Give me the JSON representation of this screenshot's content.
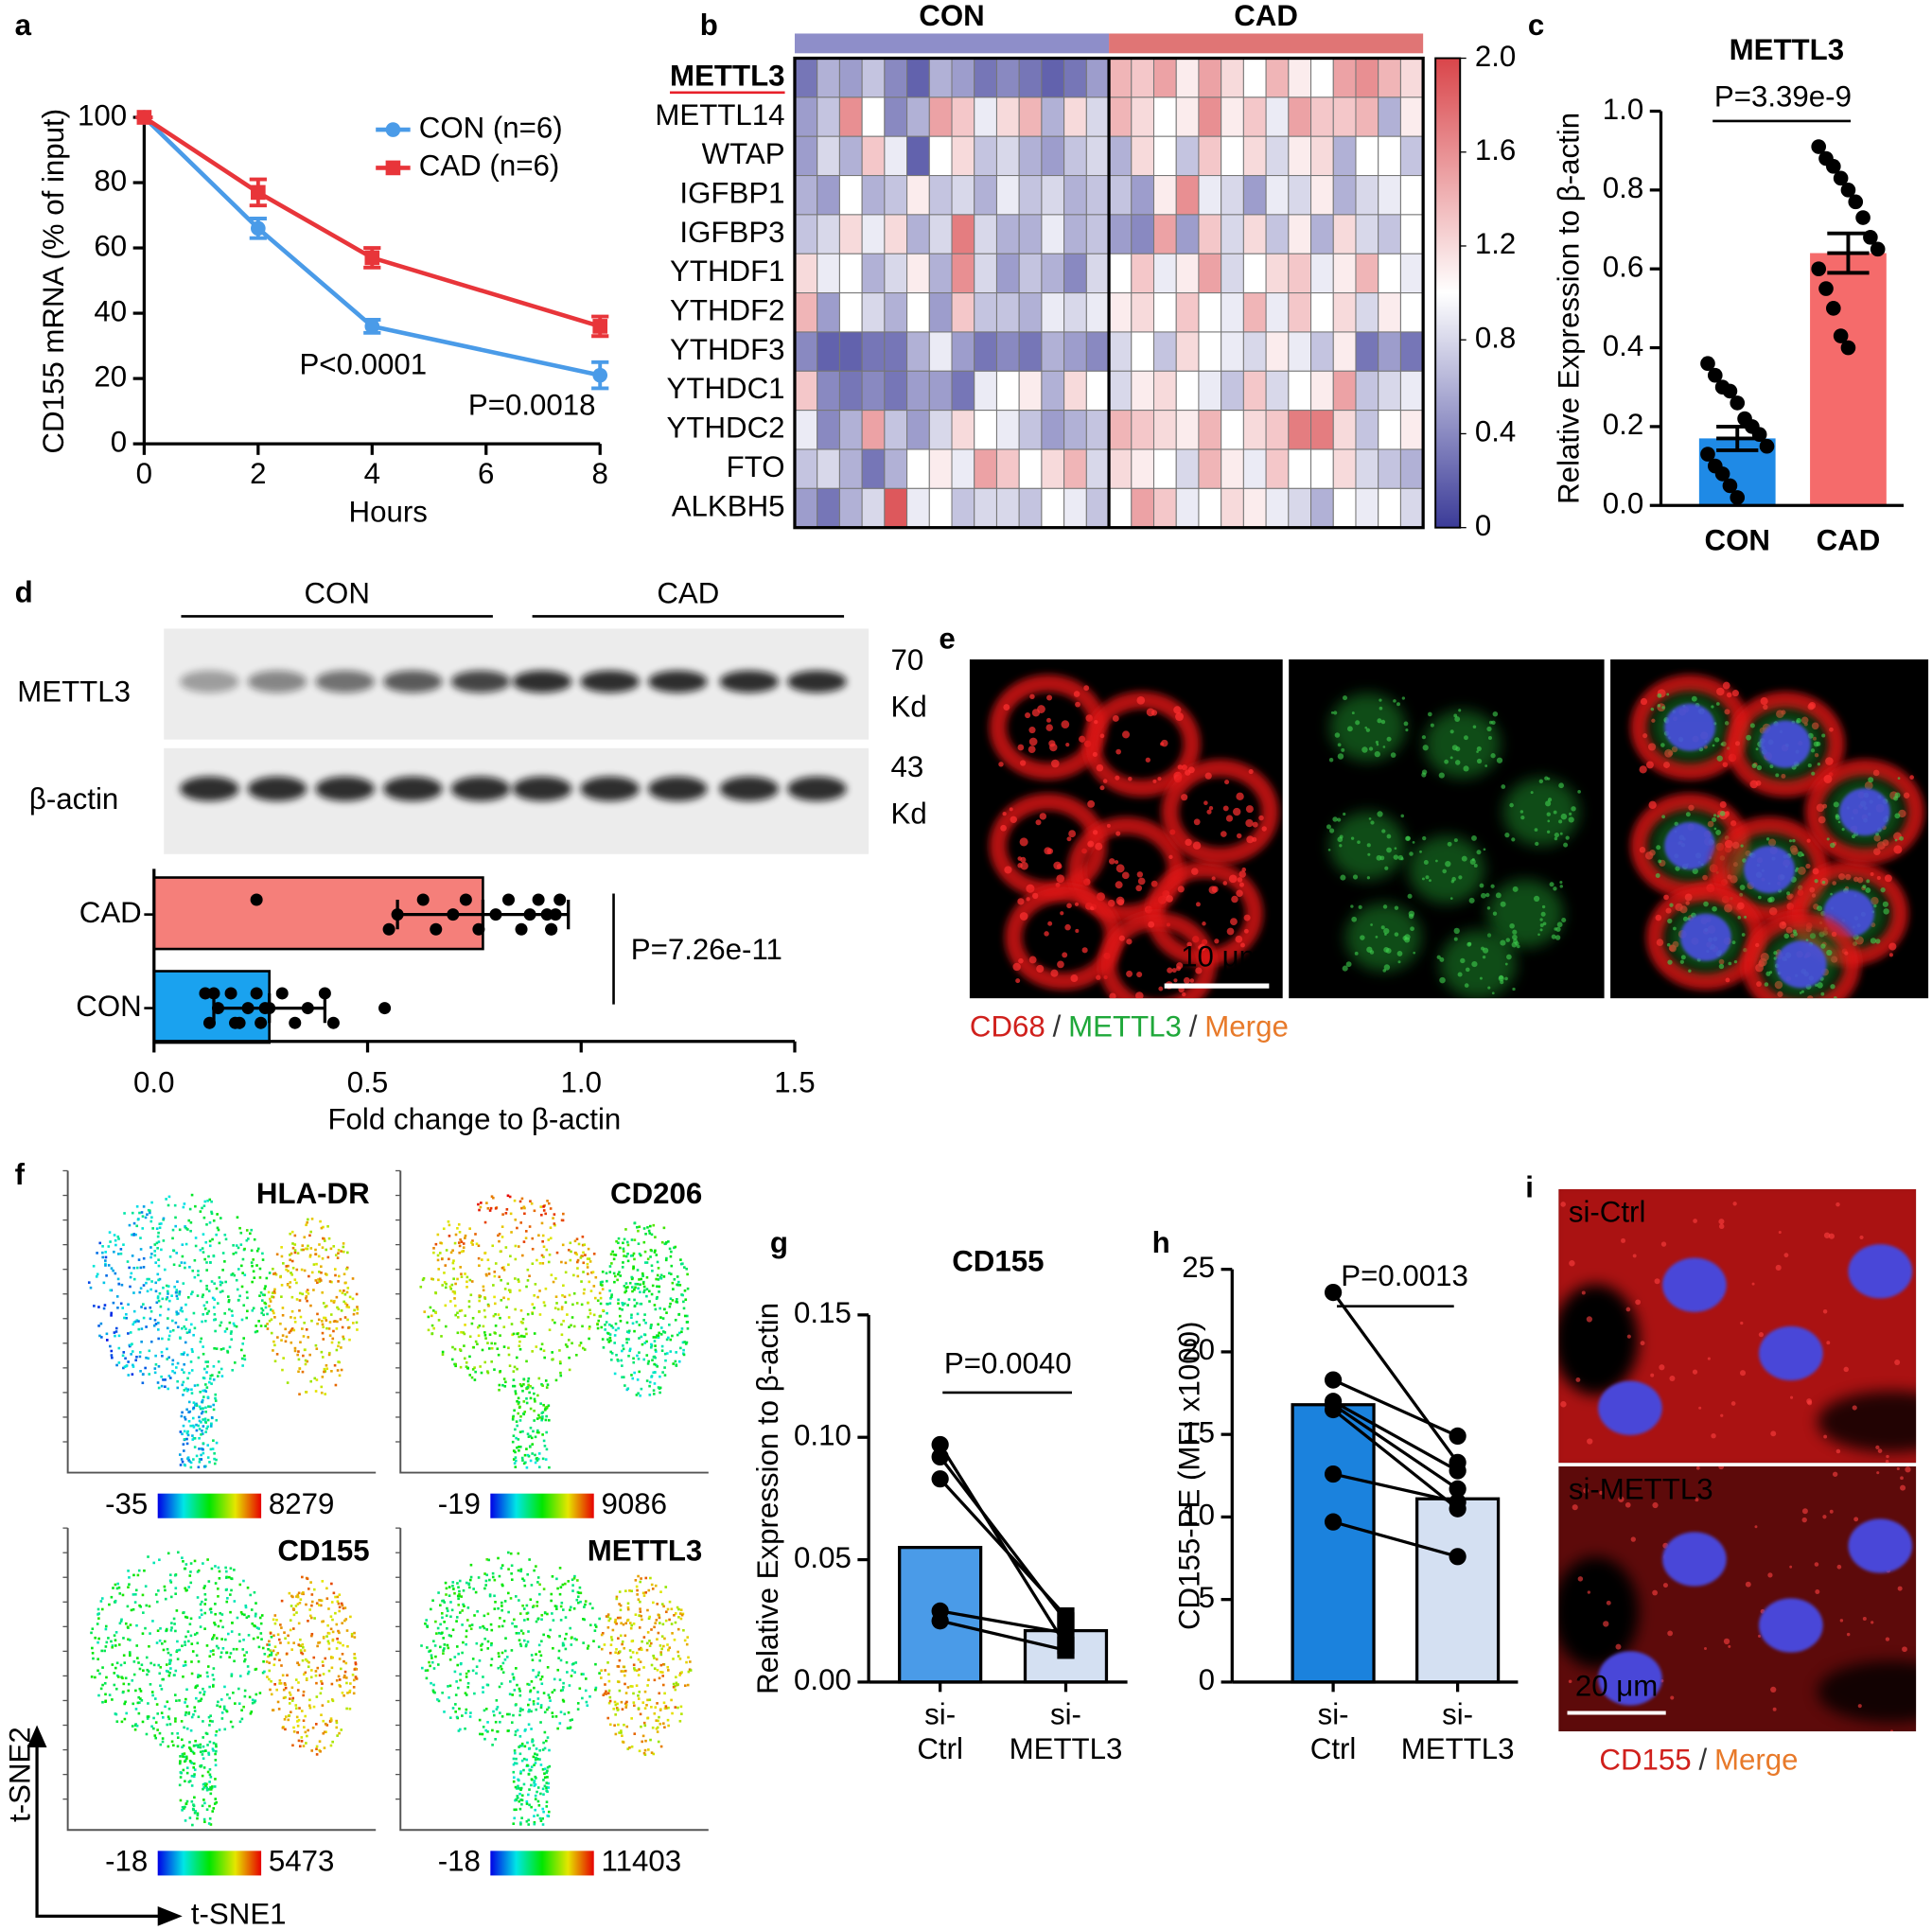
{
  "panel_labels": [
    "a",
    "b",
    "c",
    "d",
    "e",
    "f",
    "g",
    "h",
    "i"
  ],
  "chart_data": [
    {
      "type": "line",
      "ylabel": "CD155 mRNA (% of input)",
      "xlabel": "Hours",
      "x": [
        0,
        2,
        4,
        8
      ],
      "xlim": [
        0,
        8
      ],
      "xticks": [
        0,
        2,
        4,
        6,
        8
      ],
      "ylim": [
        0,
        100
      ],
      "yticks": [
        0,
        20,
        40,
        60,
        80,
        100
      ],
      "series": [
        {
          "name": "CON (n=6)",
          "color": "#4a9be8",
          "values": [
            100,
            66,
            36,
            21
          ],
          "errors": [
            0,
            3,
            2,
            4
          ]
        },
        {
          "name": "CAD (n=6)",
          "color": "#e8353a",
          "values": [
            100,
            77,
            57,
            36
          ],
          "errors": [
            0,
            4,
            3,
            3
          ]
        }
      ],
      "annotations": [
        "P<0.0001",
        "P=0.0018"
      ]
    },
    {
      "type": "heatmap",
      "groups": [
        {
          "name": "CON",
          "color": "#8e8ec9"
        },
        {
          "name": "CAD",
          "color": "#e07575"
        }
      ],
      "rows": [
        "METTL3",
        "METTL14",
        "WTAP",
        "IGFBP1",
        "IGFBP3",
        "YTHDF1",
        "YTHDF2",
        "YTHDF3",
        "YTHDC1",
        "YTHDC2",
        "FTO",
        "ALKBH5"
      ],
      "highlight_row": 0,
      "highlight_color": "#e8202a",
      "values": [
        [
          0.3,
          0.6,
          0.5,
          0.7,
          0.4,
          0.2,
          0.6,
          0.5,
          0.3,
          0.4,
          0.3,
          0.2,
          0.3,
          0.5,
          1.4,
          1.3,
          1.5,
          1.1,
          1.5,
          1.2,
          1.0,
          1.4,
          1.1,
          1.0,
          1.5,
          1.6,
          1.4,
          1.2
        ],
        [
          0.5,
          0.7,
          1.6,
          1.0,
          0.4,
          0.6,
          1.5,
          1.3,
          0.9,
          1.2,
          1.4,
          0.6,
          1.2,
          0.8,
          1.4,
          1.2,
          1.0,
          1.1,
          1.6,
          1.1,
          1.3,
          0.9,
          1.5,
          1.3,
          1.3,
          1.4,
          0.6,
          1.1
        ],
        [
          0.5,
          0.8,
          0.6,
          1.3,
          0.9,
          0.2,
          1.0,
          1.2,
          0.7,
          0.8,
          0.6,
          0.5,
          0.7,
          0.8,
          0.6,
          1.2,
          1.0,
          0.7,
          1.3,
          1.0,
          1.2,
          0.8,
          1.1,
          1.2,
          0.6,
          1.0,
          1.0,
          0.7
        ],
        [
          0.6,
          0.5,
          1.0,
          0.6,
          0.7,
          1.1,
          0.7,
          0.8,
          0.6,
          0.9,
          0.7,
          0.8,
          0.6,
          0.7,
          0.7,
          0.5,
          1.1,
          1.6,
          0.9,
          0.8,
          0.5,
          0.9,
          0.8,
          1.1,
          0.6,
          0.8,
          0.9,
          1.0
        ],
        [
          0.7,
          0.8,
          1.2,
          0.9,
          1.2,
          0.6,
          0.8,
          1.7,
          0.8,
          0.6,
          0.6,
          0.9,
          0.6,
          0.7,
          0.5,
          0.4,
          1.5,
          0.5,
          1.3,
          0.8,
          1.2,
          0.7,
          1.1,
          0.6,
          1.2,
          0.8,
          0.7,
          1.0
        ],
        [
          1.2,
          0.9,
          1.0,
          0.6,
          0.8,
          1.1,
          0.6,
          1.6,
          0.8,
          0.5,
          0.7,
          0.6,
          0.4,
          0.8,
          1.0,
          1.3,
          0.9,
          1.1,
          1.5,
          0.8,
          1.0,
          1.2,
          1.3,
          0.9,
          1.1,
          1.4,
          1.0,
          0.9
        ],
        [
          1.4,
          0.5,
          1.0,
          0.8,
          0.6,
          1.0,
          0.5,
          1.3,
          0.7,
          0.7,
          0.6,
          0.9,
          0.8,
          0.9,
          1.1,
          1.2,
          1.0,
          1.3,
          1.0,
          0.9,
          1.4,
          0.9,
          1.3,
          1.0,
          1.2,
          0.8,
          1.1,
          1.0
        ],
        [
          0.4,
          0.2,
          0.2,
          0.3,
          0.3,
          0.6,
          0.9,
          0.5,
          0.3,
          0.4,
          0.3,
          0.6,
          0.5,
          0.4,
          0.8,
          1.0,
          0.7,
          1.2,
          1.0,
          0.9,
          0.8,
          1.1,
          0.9,
          0.7,
          1.1,
          0.3,
          0.5,
          0.3
        ],
        [
          1.3,
          0.4,
          0.3,
          0.4,
          0.3,
          0.5,
          0.5,
          0.3,
          0.9,
          1.0,
          1.1,
          0.6,
          1.2,
          1.0,
          0.8,
          1.1,
          1.2,
          1.0,
          0.9,
          0.7,
          1.3,
          0.8,
          1.0,
          1.1,
          1.5,
          0.7,
          0.8,
          0.9
        ],
        [
          0.9,
          0.4,
          0.6,
          1.5,
          0.7,
          0.5,
          0.8,
          1.2,
          1.0,
          0.9,
          0.7,
          0.5,
          0.6,
          0.7,
          1.4,
          1.3,
          1.2,
          1.1,
          1.4,
          1.0,
          1.2,
          1.3,
          1.7,
          1.7,
          1.2,
          0.7,
          1.0,
          1.1
        ],
        [
          0.7,
          0.8,
          0.6,
          0.3,
          0.6,
          1.0,
          1.1,
          0.9,
          1.5,
          1.3,
          1.0,
          1.2,
          1.4,
          0.8,
          1.2,
          1.1,
          1.0,
          0.8,
          1.4,
          1.1,
          0.9,
          1.3,
          1.0,
          1.0,
          1.2,
          0.8,
          0.7,
          0.6
        ],
        [
          0.5,
          0.3,
          0.6,
          0.8,
          1.9,
          0.9,
          1.0,
          0.7,
          0.8,
          0.8,
          0.7,
          1.0,
          0.9,
          0.7,
          1.0,
          1.5,
          1.3,
          0.9,
          1.0,
          1.2,
          1.1,
          0.9,
          0.8,
          0.6,
          1.0,
          0.9,
          1.0,
          0.8
        ]
      ],
      "clim": [
        0,
        2
      ],
      "cticks": [
        0,
        0.4,
        0.8,
        1.2,
        1.6,
        {
          "value": 2,
          "label": "2.0"
        }
      ],
      "colors": [
        "#3b3b98",
        "#ffffff",
        "#d9454a"
      ]
    },
    {
      "type": "bar_dots",
      "title": "METTL3",
      "annotation": "P=3.39e-9",
      "ylabel": "Relative Expression to β-actin",
      "categories": [
        "CON",
        "CAD"
      ],
      "colors": [
        "#1f8ae6",
        "#f56b6b"
      ],
      "values": [
        0.17,
        0.64
      ],
      "errors": [
        0.03,
        0.05
      ],
      "points": [
        [
          0.36,
          0.33,
          0.3,
          0.29,
          0.26,
          0.22,
          0.2,
          0.18,
          0.15,
          0.13,
          0.1,
          0.08,
          0.05,
          0.02
        ],
        [
          0.91,
          0.88,
          0.86,
          0.83,
          0.8,
          0.77,
          0.73,
          0.68,
          0.65,
          0.6,
          0.55,
          0.5,
          0.43,
          0.4
        ]
      ],
      "ylim": [
        0,
        1
      ],
      "yticks": [
        {
          "value": 0,
          "label": "0.0"
        },
        0.2,
        0.4,
        0.6,
        0.8,
        {
          "value": 1,
          "label": "1.0"
        }
      ]
    },
    {
      "type": "blot",
      "groups": [
        "CON",
        "CAD"
      ],
      "rows": [
        {
          "name": "METTL3",
          "size": [
            "70",
            "Kd"
          ]
        },
        {
          "name": "β-actin",
          "size": [
            "43",
            "Kd"
          ]
        }
      ]
    },
    {
      "type": "hbar_dots",
      "annotation": "P=7.26e-11",
      "xlabel": "Fold change to β-actin",
      "categories": [
        "CAD",
        "CON"
      ],
      "colors": [
        "#f57f7a",
        "#1aa2ef"
      ],
      "values": [
        0.77,
        0.27
      ],
      "errors": [
        0.2,
        0.13
      ],
      "points": [
        [
          0.24,
          0.55,
          0.57,
          0.63,
          0.66,
          0.7,
          0.73,
          0.76,
          0.8,
          0.83,
          0.86,
          0.88,
          0.9,
          0.93,
          0.94,
          0.95,
          0.93,
          0.92
        ],
        [
          0.12,
          0.13,
          0.15,
          0.18,
          0.2,
          0.22,
          0.24,
          0.25,
          0.27,
          0.3,
          0.33,
          0.36,
          0.4,
          0.42,
          0.54,
          0.14,
          0.19,
          0.26
        ]
      ],
      "xlim": [
        0,
        1.5
      ],
      "xticks": [
        {
          "value": 0,
          "label": "0.0"
        },
        0.5,
        {
          "value": 1,
          "label": "1.0"
        },
        1.5
      ]
    },
    {
      "type": "image",
      "scale_bar": "10 μm",
      "caption": [
        {
          "text": "CD68",
          "color": "#d0201c"
        },
        {
          "text": "/",
          "color": "#333333"
        },
        {
          "text": "METTL3",
          "color": "#1fa83a"
        },
        {
          "text": "/",
          "color": "#333333"
        },
        {
          "text": "Merge",
          "color": "#e87a2a"
        }
      ]
    },
    {
      "type": "tsne",
      "xlabel": "t-SNE1",
      "ylabel": "t-SNE2",
      "panels": [
        {
          "name": "HLA-DR",
          "min": -35,
          "max": 8279
        },
        {
          "name": "CD206",
          "min": -19,
          "max": 9086
        },
        {
          "name": "CD155",
          "min": -18,
          "max": 5473
        },
        {
          "name": "METTL3",
          "min": -18,
          "max": 11403
        }
      ]
    },
    {
      "type": "paired_bar",
      "title": "CD155",
      "annotation": "P=0.0040",
      "ylabel": "Relative Expression to β-actin",
      "categories": [
        [
          "si-",
          "Ctrl"
        ],
        [
          "si-",
          "METTL3"
        ]
      ],
      "colors": [
        "#4a9be8",
        "#d4e0f2"
      ],
      "values": [
        0.055,
        0.021
      ],
      "pairs": [
        [
          0.097,
          0.015
        ],
        [
          0.092,
          0.025
        ],
        [
          0.083,
          0.027
        ],
        [
          0.029,
          0.02
        ],
        [
          0.025,
          0.013
        ]
      ],
      "ylim": [
        0,
        0.15
      ],
      "yticks": [
        {
          "value": 0,
          "label": "0.00"
        },
        0.05,
        {
          "value": 0.1,
          "label": "0.10"
        },
        0.15
      ]
    },
    {
      "type": "paired_bar",
      "annotation": "P=0.0013",
      "ylabel": "CD155-PE (MFI x1000)",
      "categories": [
        [
          "si-",
          "Ctrl"
        ],
        [
          "si-",
          "METTL3"
        ]
      ],
      "colors": [
        "#1b82dd",
        "#d4e0f2"
      ],
      "values": [
        16.8,
        11.1
      ],
      "pairs": [
        [
          23.6,
          13.3
        ],
        [
          18.3,
          14.9
        ],
        [
          17.0,
          12.8
        ],
        [
          16.8,
          11.7
        ],
        [
          16.5,
          10.5
        ],
        [
          12.6,
          10.9
        ],
        [
          9.7,
          7.6
        ]
      ],
      "ylim": [
        0,
        25
      ],
      "yticks": [
        0,
        5,
        10,
        15,
        20,
        25
      ]
    },
    {
      "type": "image",
      "labels": [
        "si-Ctrl",
        "si-METTL3"
      ],
      "scale_bar": "20 μm",
      "caption": [
        {
          "text": "CD155",
          "color": "#d0201c"
        },
        {
          "text": "/",
          "color": "#333333"
        },
        {
          "text": "Merge",
          "color": "#e87a2a"
        }
      ]
    }
  ]
}
